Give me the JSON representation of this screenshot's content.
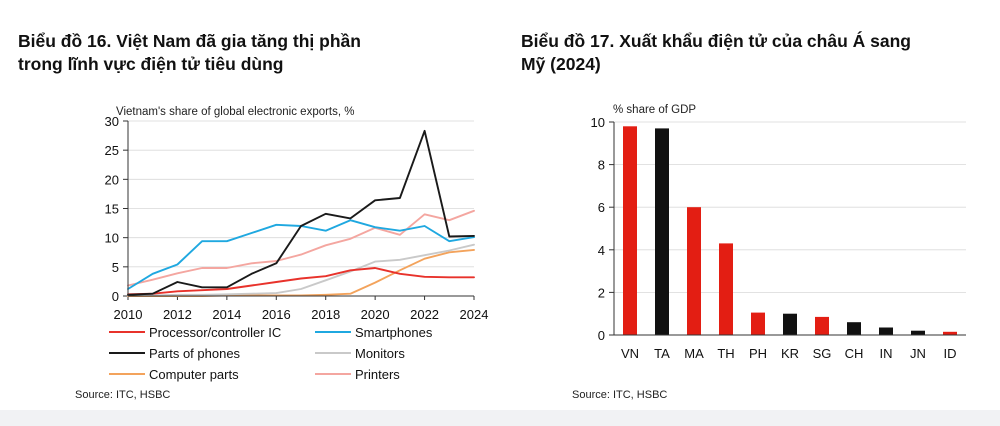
{
  "left": {
    "title_line1": "Biểu đồ 16. Việt Nam đã gia tăng thị phần",
    "title_line2": "trong lĩnh vực điện tử tiêu dùng",
    "source": "Source: ITC, HSBC"
  },
  "right": {
    "title_line1": "Biểu đồ 17. Xuất khẩu điện tử của châu Á sang",
    "title_line2": "Mỹ (2024)",
    "source": "Source: ITC, HSBC"
  },
  "chart_data": [
    {
      "type": "line",
      "ylabel": "Vietnam's share of global electronic exports, %",
      "x": [
        2010,
        2011,
        2012,
        2013,
        2014,
        2015,
        2016,
        2017,
        2018,
        2019,
        2020,
        2021,
        2022,
        2023,
        2024
      ],
      "xticks": [
        "2010",
        "2012",
        "2014",
        "2016",
        "2018",
        "2020",
        "2022",
        "2024"
      ],
      "xlim": [
        2010,
        2024
      ],
      "yticks": [
        "0",
        "5",
        "10",
        "15",
        "20",
        "25",
        "30"
      ],
      "ylim": [
        0,
        30
      ],
      "grid": true,
      "legend_placement": "bottom",
      "series": [
        {
          "name": "Processor/controller IC",
          "color": "#e8322b",
          "values": [
            0.3,
            0.4,
            0.8,
            1.0,
            1.2,
            1.8,
            2.4,
            3.0,
            3.4,
            4.4,
            4.8,
            3.8,
            3.3,
            3.2,
            3.2
          ]
        },
        {
          "name": "Smartphones",
          "color": "#1fa8e0",
          "values": [
            1.2,
            3.8,
            5.4,
            9.4,
            9.4,
            10.8,
            12.2,
            12.0,
            11.2,
            13.0,
            11.8,
            11.2,
            12.0,
            9.4,
            10.1
          ]
        },
        {
          "name": "Parts of phones",
          "color": "#1a1a1a",
          "values": [
            0.2,
            0.4,
            2.4,
            1.5,
            1.5,
            3.8,
            5.6,
            12.0,
            14.1,
            13.3,
            16.4,
            16.8,
            28.3,
            10.2,
            10.3
          ]
        },
        {
          "name": "Monitors",
          "color": "#c9c9c9",
          "values": [
            0.1,
            0.1,
            0.2,
            0.2,
            0.3,
            0.4,
            0.5,
            1.2,
            2.7,
            4.2,
            5.9,
            6.2,
            7.0,
            7.8,
            8.8
          ]
        },
        {
          "name": "Computer parts",
          "color": "#f3a35c",
          "values": [
            0.0,
            0.0,
            0.0,
            0.0,
            0.1,
            0.1,
            0.1,
            0.1,
            0.2,
            0.4,
            2.3,
            4.4,
            6.4,
            7.5,
            7.9
          ]
        },
        {
          "name": "Printers",
          "color": "#f4a6a0",
          "values": [
            1.8,
            2.8,
            3.9,
            4.8,
            4.8,
            5.6,
            6.0,
            7.1,
            8.7,
            9.8,
            11.7,
            10.5,
            14.0,
            13.0,
            14.6
          ]
        }
      ]
    },
    {
      "type": "bar",
      "ylabel": "% share of GDP",
      "categories": [
        "VN",
        "TA",
        "MA",
        "TH",
        "PH",
        "KR",
        "SG",
        "CH",
        "IN",
        "JN",
        "ID"
      ],
      "values": [
        9.8,
        9.7,
        6.0,
        4.3,
        1.05,
        1.0,
        0.85,
        0.6,
        0.35,
        0.2,
        0.15
      ],
      "colors": [
        "#e31e13",
        "#111111",
        "#e31e13",
        "#e31e13",
        "#e31e13",
        "#111111",
        "#e31e13",
        "#111111",
        "#111111",
        "#111111",
        "#e31e13"
      ],
      "yticks": [
        "0",
        "2",
        "4",
        "6",
        "8",
        "10"
      ],
      "ylim": [
        0,
        10
      ],
      "grid": true
    }
  ]
}
